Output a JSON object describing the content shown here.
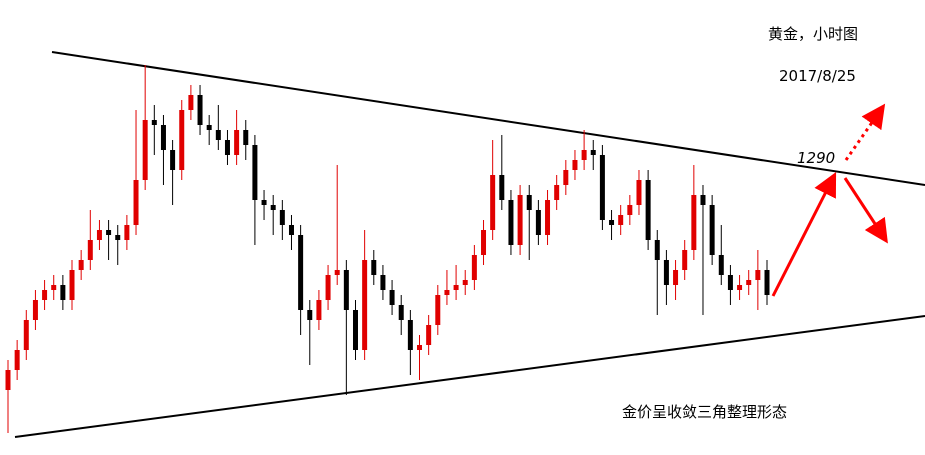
{
  "chart_data": {
    "type": "candlestick",
    "title": "黄金，小时图",
    "subtitle": "2017/8/25",
    "annotations": [
      "1290",
      "金价呈收敛三角整理形态"
    ],
    "up_color": "#e00000",
    "down_color": "#000000",
    "ylim": [
      1262.3,
      1307.8
    ],
    "open": [
      1268.8,
      1270.8,
      1272.8,
      1275.8,
      1277.8,
      1278.8,
      1279.3,
      1277.8,
      1280.8,
      1281.8,
      1283.8,
      1284.8,
      1284.3,
      1283.8,
      1285.3,
      1289.8,
      1295.8,
      1295.3,
      1292.8,
      1290.8,
      1296.8,
      1298.3,
      1295.3,
      1294.8,
      1293.8,
      1292.3,
      1294.8,
      1293.3,
      1287.8,
      1287.3,
      1286.8,
      1285.3,
      1284.3,
      1276.8,
      1275.8,
      1277.8,
      1280.3,
      1280.8,
      1276.8,
      1272.8,
      1281.8,
      1280.3,
      1278.8,
      1277.3,
      1275.8,
      1272.8,
      1273.3,
      1275.3,
      1278.3,
      1278.8,
      1279.3,
      1279.8,
      1282.3,
      1284.8,
      1290.3,
      1287.8,
      1283.3,
      1288.3,
      1286.8,
      1284.3,
      1287.8,
      1289.3,
      1290.8,
      1291.8,
      1292.8,
      1292.3,
      1285.8,
      1285.3,
      1286.3,
      1287.3,
      1289.8,
      1283.8,
      1281.8,
      1279.3,
      1280.8,
      1282.8,
      1288.3,
      1287.3,
      1282.3,
      1280.3,
      1278.8,
      1279.3,
      1279.8,
      1280.8
    ],
    "high": [
      1271.8,
      1273.8,
      1276.8,
      1278.8,
      1279.8,
      1280.3,
      1280.3,
      1281.8,
      1282.8,
      1286.8,
      1285.8,
      1285.8,
      1285.3,
      1286.3,
      1296.8,
      1301.3,
      1297.3,
      1296.3,
      1293.8,
      1297.8,
      1299.3,
      1299.3,
      1296.3,
      1297.3,
      1294.8,
      1296.8,
      1295.8,
      1294.3,
      1288.8,
      1288.3,
      1287.8,
      1286.3,
      1285.3,
      1277.8,
      1278.8,
      1281.3,
      1291.3,
      1281.8,
      1277.8,
      1284.8,
      1282.8,
      1281.3,
      1279.8,
      1278.3,
      1276.8,
      1274.3,
      1276.3,
      1279.3,
      1280.8,
      1281.3,
      1280.8,
      1283.3,
      1285.8,
      1293.8,
      1294.3,
      1288.8,
      1289.3,
      1289.3,
      1287.8,
      1288.8,
      1290.3,
      1291.8,
      1292.8,
      1294.8,
      1293.8,
      1293.3,
      1286.8,
      1287.3,
      1288.3,
      1290.8,
      1290.8,
      1284.8,
      1282.8,
      1281.8,
      1283.8,
      1291.3,
      1289.3,
      1288.3,
      1285.3,
      1281.3,
      1280.3,
      1280.8,
      1282.8,
      1281.8
    ],
    "low": [
      1264.5,
      1269.8,
      1271.8,
      1274.8,
      1276.8,
      1277.8,
      1276.8,
      1276.8,
      1279.8,
      1280.8,
      1282.8,
      1281.8,
      1281.3,
      1282.8,
      1284.3,
      1288.8,
      1292.3,
      1289.3,
      1287.3,
      1289.8,
      1295.8,
      1294.3,
      1293.3,
      1292.8,
      1291.3,
      1291.3,
      1291.8,
      1283.3,
      1285.8,
      1284.3,
      1283.8,
      1282.8,
      1274.3,
      1271.3,
      1274.8,
      1276.8,
      1279.3,
      1268.3,
      1271.8,
      1271.8,
      1279.3,
      1277.8,
      1276.3,
      1274.3,
      1270.3,
      1269.8,
      1272.3,
      1274.3,
      1277.3,
      1277.8,
      1278.3,
      1278.8,
      1281.3,
      1283.8,
      1286.8,
      1282.3,
      1282.3,
      1281.8,
      1283.3,
      1283.3,
      1286.8,
      1288.3,
      1289.8,
      1290.8,
      1290.8,
      1284.8,
      1283.8,
      1284.3,
      1285.3,
      1286.3,
      1282.8,
      1276.3,
      1277.3,
      1277.8,
      1279.8,
      1281.8,
      1276.3,
      1281.3,
      1279.3,
      1277.3,
      1277.8,
      1278.3,
      1276.8,
      1277.3
    ],
    "close": [
      1270.8,
      1272.8,
      1275.8,
      1277.8,
      1278.8,
      1279.3,
      1277.8,
      1280.8,
      1281.8,
      1283.8,
      1284.8,
      1284.3,
      1283.8,
      1285.3,
      1289.8,
      1295.8,
      1295.3,
      1292.8,
      1290.8,
      1296.8,
      1298.3,
      1295.3,
      1294.8,
      1293.8,
      1292.3,
      1294.8,
      1293.3,
      1287.8,
      1287.3,
      1286.8,
      1285.3,
      1284.3,
      1276.8,
      1275.8,
      1277.8,
      1280.3,
      1280.8,
      1276.8,
      1272.8,
      1281.8,
      1280.3,
      1278.8,
      1277.3,
      1275.8,
      1272.8,
      1273.3,
      1275.3,
      1278.3,
      1278.8,
      1279.3,
      1279.8,
      1282.3,
      1284.8,
      1290.3,
      1287.8,
      1283.3,
      1288.3,
      1286.8,
      1284.3,
      1287.8,
      1289.3,
      1290.8,
      1291.8,
      1292.8,
      1292.3,
      1285.8,
      1285.3,
      1286.3,
      1287.3,
      1289.8,
      1283.8,
      1281.8,
      1279.3,
      1280.8,
      1282.8,
      1288.3,
      1287.3,
      1282.3,
      1280.3,
      1278.8,
      1279.3,
      1279.8,
      1280.8,
      1278.3
    ]
  }
}
